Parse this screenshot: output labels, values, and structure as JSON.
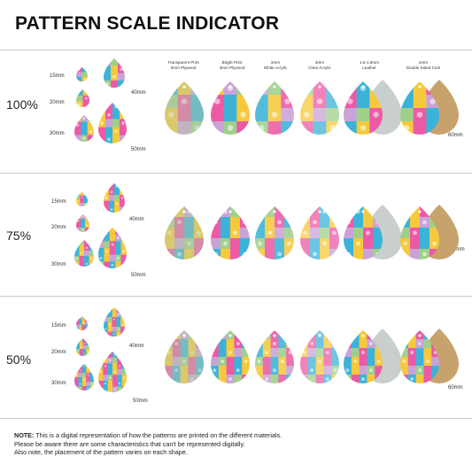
{
  "title": "PATTERN SCALE INDICATOR",
  "materials": [
    {
      "line1": "Transparent Print",
      "line2": "3mm Plywood"
    },
    {
      "line1": "Bright Print",
      "line2": "3mm Plywood"
    },
    {
      "line1": "3mm",
      "line2": "White Acrylic"
    },
    {
      "line1": "3mm",
      "line2": "Clear Acrylic"
    },
    {
      "line1": "1.6-1.8mm",
      "line2": "Leather"
    },
    {
      "line1": "2mm",
      "line2": "Double Sided Cork"
    }
  ],
  "rows": [
    {
      "scale": "100%",
      "sizes": {
        "s15": "15mm",
        "s20": "20mm",
        "s30": "30mm",
        "s40": "40mm",
        "s50": "50mm",
        "s60": "60mm"
      }
    },
    {
      "scale": "75%",
      "sizes": {
        "s15": "15mm",
        "s20": "20mm",
        "s30": "30mm",
        "s40": "40mm",
        "s50": "50mm",
        "s60": "60mm"
      }
    },
    {
      "scale": "50%",
      "sizes": {
        "s15": "15mm",
        "s20": "20mm",
        "s30": "30mm",
        "s40": "40mm",
        "s50": "50mm",
        "s60": "60mm"
      }
    }
  ],
  "note": {
    "label": "NOTE:",
    "line1": " This is a digital representation of how the patterns are printed on the different materials.",
    "line2": "Please be aware there are some characteristics that can't be represented digitally.",
    "line3": "Also note, the placement of the pattern varies on each shape."
  },
  "colors": {
    "pink": "#ec5aa6",
    "blue": "#3bb3d9",
    "yellow": "#f6c93d",
    "lilac": "#c9a3d8",
    "green": "#9fd08a",
    "leather": "#c9cfcc",
    "cork": "#c8a26c"
  }
}
